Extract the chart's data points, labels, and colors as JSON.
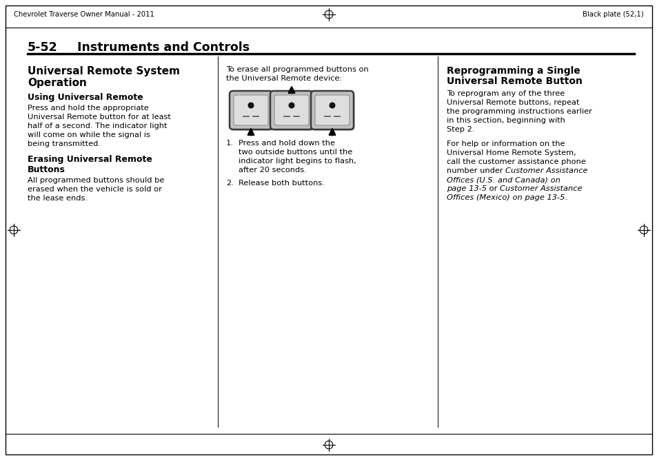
{
  "bg_color": "#ffffff",
  "header_left": "Chevrolet Traverse Owner Manual - 2011",
  "header_right": "Black plate (52,1)",
  "section_number": "5-52",
  "section_title": "Instruments and Controls",
  "col1_title_line1": "Universal Remote System",
  "col1_title_line2": "Operation",
  "col1_sub1": "Using Universal Remote",
  "col1_body1_lines": [
    "Press and hold the appropriate",
    "Universal Remote button for at least",
    "half of a second. The indicator light",
    "will come on while the signal is",
    "being transmitted."
  ],
  "col1_sub2_line1": "Erasing Universal Remote",
  "col1_sub2_line2": "Buttons",
  "col1_body2_lines": [
    "All programmed buttons should be",
    "erased when the vehicle is sold or",
    "the lease ends."
  ],
  "col2_intro_lines": [
    "To erase all programmed buttons on",
    "the Universal Remote device:"
  ],
  "col2_list1_lines": [
    "Press and hold down the",
    "two outside buttons until the",
    "indicator light begins to flash,",
    "after 20 seconds."
  ],
  "col2_list2": "Release both buttons.",
  "col3_title_line1": "Reprogramming a Single",
  "col3_title_line2": "Universal Remote Button",
  "col3_body1_lines": [
    "To reprogram any of the three",
    "Universal Remote buttons, repeat",
    "the programming instructions earlier",
    "in this section, beginning with",
    "Step 2."
  ],
  "col3_mixed_lines": [
    [
      [
        "For help or information on the",
        false
      ]
    ],
    [
      [
        "Universal Home Remote System,",
        false
      ]
    ],
    [
      [
        "call the customer assistance phone",
        false
      ]
    ],
    [
      [
        "number under ",
        false
      ],
      [
        "Customer Assistance",
        true
      ]
    ],
    [
      [
        "Offices (U.S. and Canada) on",
        true
      ]
    ],
    [
      [
        "page 13-5",
        true
      ],
      [
        " or ",
        false
      ],
      [
        "Customer Assistance",
        true
      ]
    ],
    [
      [
        "Offices (Mexico) on page 13-5",
        true
      ],
      [
        ".",
        false
      ]
    ]
  ]
}
